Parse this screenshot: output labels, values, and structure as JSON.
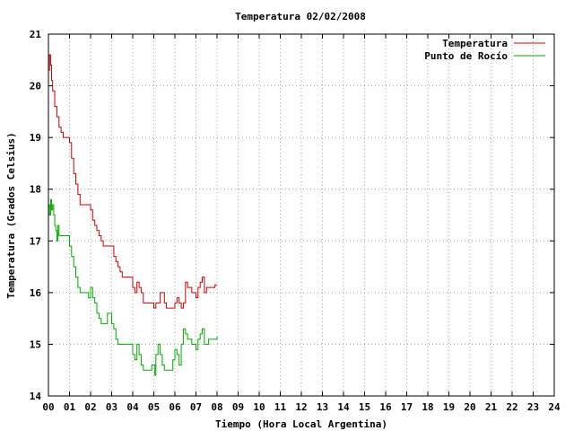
{
  "chart_data": {
    "type": "line",
    "title": "Temperatura 02/02/2008",
    "xlabel": "Tiempo (Hora Local Argentina)",
    "ylabel": "Temperatura (Grados Celsius)",
    "xlim": [
      0,
      24
    ],
    "ylim": [
      14,
      21
    ],
    "x_tick_labels": [
      "00",
      "01",
      "02",
      "03",
      "04",
      "05",
      "06",
      "07",
      "08",
      "09",
      "10",
      "11",
      "12",
      "13",
      "14",
      "15",
      "16",
      "17",
      "18",
      "19",
      "20",
      "21",
      "22",
      "23",
      "24"
    ],
    "y_tick_labels": [
      "14",
      "15",
      "16",
      "17",
      "18",
      "19",
      "20",
      "21"
    ],
    "grid": true,
    "legend": "top-right",
    "series": [
      {
        "name": "Temperatura",
        "color": "#cc0000",
        "x": [
          0.0,
          0.05,
          0.1,
          0.15,
          0.2,
          0.3,
          0.4,
          0.5,
          0.6,
          0.7,
          0.9,
          1.0,
          1.1,
          1.2,
          1.3,
          1.4,
          1.5,
          1.6,
          1.9,
          2.0,
          2.1,
          2.2,
          2.3,
          2.4,
          2.5,
          2.6,
          2.8,
          3.0,
          3.1,
          3.2,
          3.3,
          3.4,
          3.5,
          3.6,
          3.8,
          3.9,
          4.0,
          4.1,
          4.2,
          4.3,
          4.4,
          4.5,
          4.7,
          4.8,
          5.0,
          5.1,
          5.2,
          5.3,
          5.4,
          5.5,
          5.6,
          5.7,
          5.8,
          5.9,
          6.0,
          6.1,
          6.2,
          6.3,
          6.4,
          6.5,
          6.6,
          6.7,
          6.8,
          6.9,
          7.0,
          7.1,
          7.2,
          7.3,
          7.4,
          7.5,
          7.6,
          7.7,
          7.8,
          7.9,
          8.0
        ],
        "values": [
          20.3,
          20.6,
          20.4,
          20.1,
          19.9,
          19.6,
          19.4,
          19.2,
          19.1,
          19.0,
          19.0,
          18.9,
          18.6,
          18.3,
          18.1,
          17.9,
          17.7,
          17.7,
          17.7,
          17.6,
          17.4,
          17.3,
          17.2,
          17.1,
          17.0,
          16.9,
          16.9,
          16.9,
          16.7,
          16.6,
          16.5,
          16.4,
          16.3,
          16.3,
          16.3,
          16.3,
          16.1,
          16.0,
          16.2,
          16.1,
          16.0,
          15.8,
          15.8,
          15.8,
          15.7,
          15.8,
          15.8,
          16.0,
          16.0,
          15.8,
          15.7,
          15.7,
          15.7,
          15.7,
          15.8,
          15.9,
          15.8,
          15.7,
          15.8,
          16.2,
          16.1,
          16.1,
          16.0,
          16.0,
          15.9,
          16.1,
          16.2,
          16.3,
          16.0,
          16.1,
          16.1,
          16.1,
          16.1,
          16.15,
          16.15
        ]
      },
      {
        "name": "Punto de Rocío",
        "color": "#00aa00",
        "x": [
          0.0,
          0.05,
          0.1,
          0.15,
          0.2,
          0.25,
          0.3,
          0.35,
          0.4,
          0.45,
          0.5,
          0.6,
          0.7,
          0.8,
          0.9,
          1.0,
          1.1,
          1.2,
          1.3,
          1.4,
          1.5,
          1.6,
          1.8,
          1.9,
          2.0,
          2.1,
          2.2,
          2.3,
          2.4,
          2.5,
          2.6,
          2.7,
          2.8,
          2.9,
          3.0,
          3.1,
          3.2,
          3.3,
          3.4,
          3.6,
          3.8,
          4.0,
          4.1,
          4.2,
          4.3,
          4.4,
          4.5,
          4.6,
          4.7,
          4.8,
          4.9,
          5.0,
          5.05,
          5.1,
          5.2,
          5.3,
          5.4,
          5.5,
          5.6,
          5.7,
          5.8,
          5.9,
          6.0,
          6.1,
          6.2,
          6.3,
          6.4,
          6.5,
          6.6,
          6.7,
          6.8,
          6.9,
          7.0,
          7.1,
          7.2,
          7.3,
          7.4,
          7.5,
          7.6,
          7.7,
          7.8,
          7.9,
          8.0
        ],
        "values": [
          17.7,
          17.5,
          17.8,
          17.6,
          17.7,
          17.5,
          17.3,
          17.2,
          17.0,
          17.3,
          17.1,
          17.1,
          17.1,
          17.1,
          17.1,
          16.9,
          16.7,
          16.5,
          16.3,
          16.1,
          16.0,
          16.0,
          16.0,
          15.9,
          16.1,
          15.9,
          15.8,
          15.6,
          15.5,
          15.4,
          15.4,
          15.4,
          15.6,
          15.6,
          15.4,
          15.3,
          15.1,
          15.0,
          15.0,
          15.0,
          15.0,
          14.8,
          14.7,
          15.0,
          14.8,
          14.6,
          14.5,
          14.5,
          14.5,
          14.5,
          14.6,
          14.6,
          14.4,
          14.8,
          15.0,
          14.8,
          14.6,
          14.5,
          14.5,
          14.5,
          14.5,
          14.7,
          14.9,
          14.8,
          14.6,
          15.0,
          15.3,
          15.2,
          15.1,
          15.1,
          15.0,
          15.0,
          14.9,
          15.1,
          15.2,
          15.3,
          15.0,
          15.0,
          15.1,
          15.1,
          15.1,
          15.1,
          15.15
        ]
      }
    ]
  }
}
